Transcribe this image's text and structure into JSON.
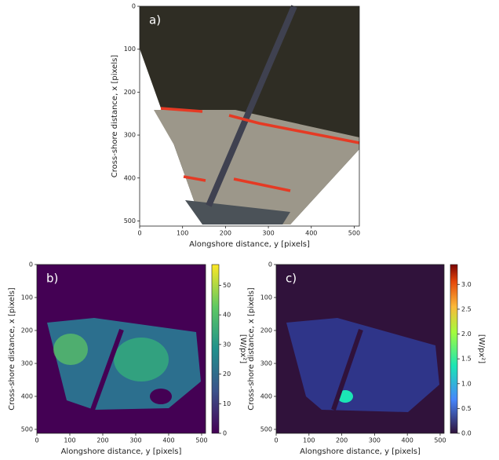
{
  "panels": [
    {
      "label": "a)",
      "xlabel": "Alongshore distance, y [pixels]",
      "ylabel": "Cross-shore distance, x [pixels]",
      "xlim": [
        0,
        512
      ],
      "ylim": [
        0,
        512
      ],
      "xticks": [
        0,
        100,
        200,
        300,
        400,
        500
      ],
      "yticks": [
        0,
        100,
        200,
        300,
        400,
        500
      ]
    },
    {
      "label": "b)",
      "xlabel": "Alongshore distance, y [pixels]",
      "ylabel": "Cross-shore distance, x [pixels]",
      "xlim": [
        0,
        512
      ],
      "ylim": [
        0,
        512
      ],
      "xticks": [
        0,
        100,
        200,
        300,
        400,
        500
      ],
      "yticks": [
        0,
        100,
        200,
        300,
        400,
        500
      ],
      "colorbar": {
        "label": "[W/px²]",
        "lim": [
          0,
          57
        ],
        "ticks": [
          0,
          10,
          20,
          30,
          40,
          50
        ]
      }
    },
    {
      "label": "c)",
      "xlabel": "Alongshore distance, y [pixels]",
      "ylabel": "Cross-shore distance, x [pixels]",
      "xlim": [
        0,
        512
      ],
      "ylim": [
        0,
        512
      ],
      "xticks": [
        0,
        100,
        200,
        300,
        400,
        500
      ],
      "yticks": [
        0,
        100,
        200,
        300,
        400,
        500
      ],
      "colorbar": {
        "label": "[W/px²]",
        "lim": [
          0,
          3.4
        ],
        "ticks": [
          {
            "value": 0,
            "label": "0.0"
          },
          0.5,
          {
            "value": 1,
            "label": "1.0"
          },
          1.5,
          {
            "value": 2,
            "label": "2.0"
          },
          2.5,
          {
            "value": 3,
            "label": "3.0"
          }
        ]
      }
    }
  ]
}
